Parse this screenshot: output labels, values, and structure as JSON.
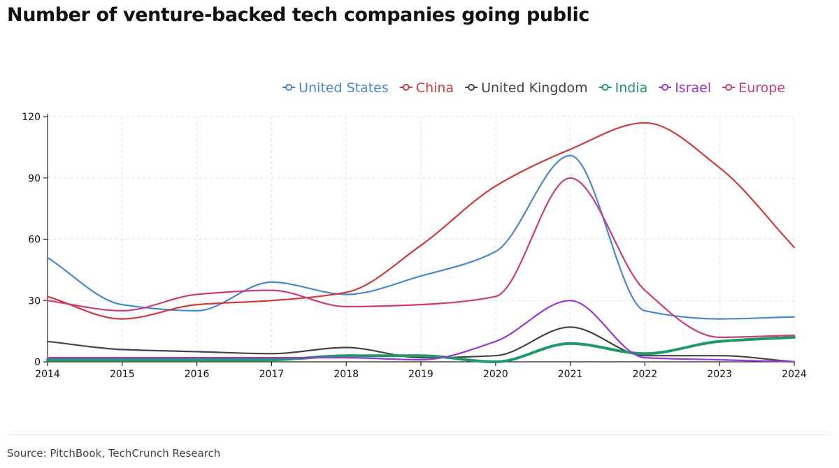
{
  "chart_data": {
    "type": "line",
    "title": "Number of venture-backed tech companies going public",
    "source": "Source: PitchBook, TechCrunch Research",
    "xlabel": "",
    "ylabel": "",
    "x": [
      "2014",
      "2015",
      "2016",
      "2017",
      "2018",
      "2019",
      "2020",
      "2021",
      "2022",
      "2023",
      "2024"
    ],
    "ylim": [
      0,
      120
    ],
    "yticks": [
      0,
      30,
      60,
      90,
      120
    ],
    "grid": true,
    "legend_position": "top-right",
    "series": [
      {
        "name": "United States",
        "color": "#4a86d0",
        "values": [
          51,
          28,
          25,
          39,
          33,
          42,
          54,
          101,
          25,
          21,
          22
        ]
      },
      {
        "name": "China",
        "color": "#d03a3a",
        "values": [
          32,
          21,
          28,
          30,
          34,
          57,
          86,
          104,
          117,
          95,
          56
        ]
      },
      {
        "name": "United Kingdom",
        "color": "#444444",
        "values": [
          10,
          6,
          5,
          4,
          7,
          2,
          3,
          17,
          3,
          3,
          0
        ]
      },
      {
        "name": "India",
        "color": "#1f9a66",
        "values": [
          1,
          1,
          1,
          1,
          3,
          3,
          0,
          9,
          4,
          10,
          12
        ]
      },
      {
        "name": "Israel",
        "color": "#9a36d6",
        "values": [
          2,
          2,
          2,
          2,
          2,
          1,
          10,
          30,
          2,
          1,
          0
        ]
      },
      {
        "name": "Europe",
        "color": "#cc3b7a",
        "values": [
          30,
          25,
          33,
          35,
          27,
          28,
          32,
          90,
          35,
          12,
          13
        ]
      }
    ]
  }
}
